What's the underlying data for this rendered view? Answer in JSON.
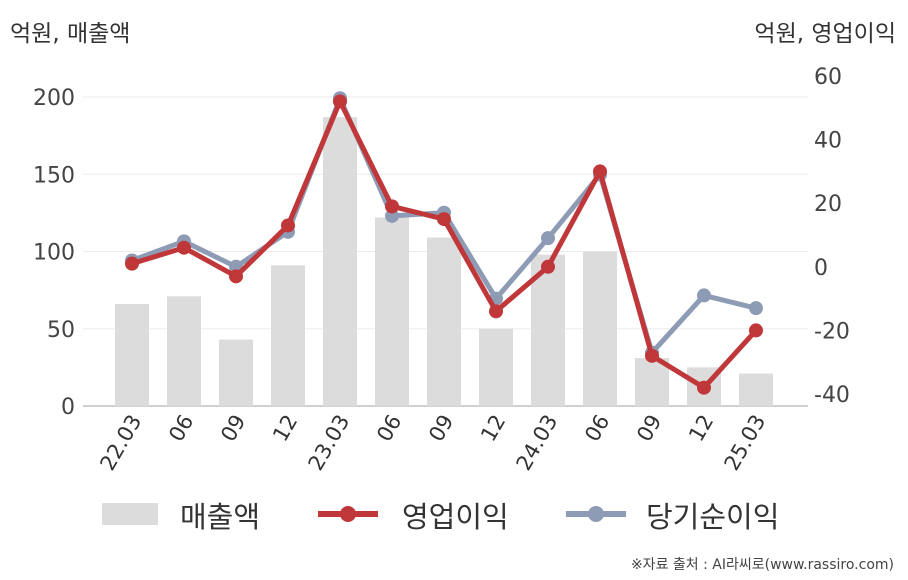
{
  "header": {
    "left_unit": "억원, 매출액",
    "right_unit": "억원, 영업이익"
  },
  "legend": {
    "revenue": "매출액",
    "operating": "영업이익",
    "net": "당기순이익"
  },
  "source": "※자료 출처 : AI라씨로(www.rassiro.com)",
  "colors": {
    "revenue": "#dcdcdc",
    "operating": "#c0373a",
    "net": "#8e9bb5"
  },
  "chart_data": {
    "type": "bar+line",
    "categories": [
      "22.03",
      "06",
      "09",
      "12",
      "23.03",
      "06",
      "09",
      "12",
      "24.03",
      "06",
      "09",
      "12",
      "25.03"
    ],
    "y_left": {
      "label": "억원, 매출액",
      "ylim": [
        0,
        200
      ],
      "ticks": [
        0,
        50,
        100,
        150,
        200
      ]
    },
    "y_right": {
      "label": "억원, 영업이익",
      "ylim": [
        -40,
        60
      ],
      "ticks": [
        -40,
        -20,
        0,
        20,
        40,
        60
      ]
    },
    "grid": true,
    "legend_position": "bottom",
    "series": [
      {
        "name": "매출액",
        "type": "bar",
        "axis": "left",
        "values": [
          66,
          71,
          43,
          91,
          187,
          122,
          109,
          50,
          98,
          100,
          31,
          25,
          21
        ]
      },
      {
        "name": "영업이익",
        "type": "line",
        "axis": "right",
        "values": [
          1,
          6,
          -3,
          13,
          52,
          19,
          15,
          -14,
          0,
          30,
          -28,
          -38,
          -20
        ]
      },
      {
        "name": "당기순이익",
        "type": "line",
        "axis": "right",
        "values": [
          2,
          8,
          0,
          11,
          53,
          16,
          17,
          -10,
          9,
          29,
          -27,
          -9,
          -13
        ]
      }
    ]
  }
}
